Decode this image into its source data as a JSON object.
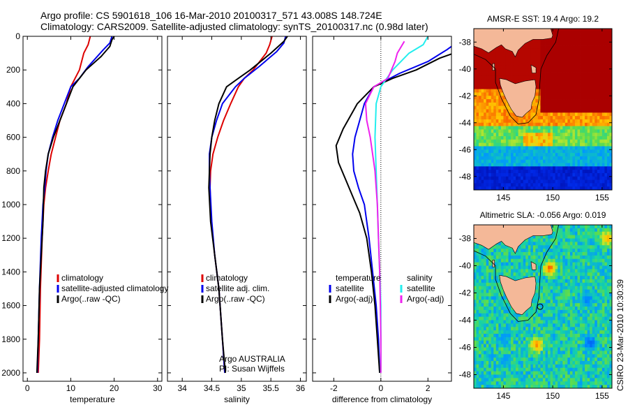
{
  "header": {
    "line1": "Argo profile: CS 5901618_106 16-Mar-2010 20100317_571 43.008S 148.724E",
    "line2": "Climatology: CARS2009. Satellite-adjusted climatology: synTS_20100317.nc (0.98d later)"
  },
  "side_label": "CSIRO 23-Mar-2010 10:30:39",
  "colors": {
    "climatology": "#dd0000",
    "satellite": "#0000ee",
    "argo": "#000000",
    "satellite_salinity": "#22eeee",
    "argo_adj_salinity": "#ee22ee",
    "land": "#f4b898",
    "coast": "#000000"
  },
  "chart_data": [
    {
      "type": "line",
      "name": "temperature-panel",
      "xlabel": "temperature",
      "xlim": [
        -1,
        31
      ],
      "ylim": [
        2050,
        0
      ],
      "xticks": [
        0,
        10,
        20,
        30
      ],
      "yticks": [
        0,
        200,
        400,
        600,
        800,
        1000,
        1200,
        1400,
        1600,
        1800,
        2000
      ],
      "legend": [
        "climatology",
        "satellite-adjusted climatology",
        "Argo(..raw -QC)"
      ],
      "series": [
        {
          "name": "climatology",
          "color_key": "climatology",
          "x": [
            14.5,
            14.0,
            13.0,
            12.0,
            11.0,
            10.0,
            9.0,
            7.5,
            6.5,
            5.5,
            4.8,
            4.2,
            3.8,
            3.4,
            3.0,
            2.8,
            2.5
          ],
          "y": [
            0,
            50,
            100,
            200,
            250,
            300,
            400,
            500,
            600,
            700,
            800,
            900,
            1000,
            1200,
            1500,
            1800,
            2000
          ]
        },
        {
          "name": "satellite-adjusted climatology",
          "color_key": "satellite",
          "x": [
            19.5,
            19.0,
            17.5,
            14.0,
            12.0,
            10.0,
            8.5,
            7.0,
            5.8,
            4.8,
            4.3,
            4.0,
            3.6,
            3.2,
            2.8,
            2.5,
            2.3
          ],
          "y": [
            0,
            40,
            80,
            180,
            250,
            300,
            400,
            500,
            600,
            700,
            800,
            900,
            1000,
            1200,
            1500,
            1800,
            2000
          ]
        },
        {
          "name": "Argo(..raw -QC)",
          "color_key": "argo",
          "x": [
            20.0,
            19.5,
            19.0,
            17.0,
            13.5,
            10.5,
            9.0,
            7.5,
            6.0,
            4.8,
            4.2,
            3.8,
            3.6,
            3.2,
            2.8,
            2.5,
            2.2
          ],
          "y": [
            0,
            20,
            60,
            120,
            200,
            300,
            400,
            500,
            600,
            700,
            800,
            900,
            1100,
            1300,
            1500,
            1800,
            2000
          ]
        }
      ],
      "annotations": []
    },
    {
      "type": "line",
      "name": "salinity-panel",
      "xlabel": "salinity",
      "xlim": [
        33.75,
        36.1
      ],
      "ylim": [
        2050,
        0
      ],
      "xticks": [
        34,
        34.5,
        35,
        35.5,
        36
      ],
      "legend": [
        "climatology",
        "satellite adj. clim.",
        "Argo(..raw -QC)"
      ],
      "series": [
        {
          "name": "climatology",
          "color_key": "climatology",
          "x": [
            35.52,
            35.48,
            35.42,
            35.2,
            35.05,
            34.95,
            34.82,
            34.7,
            34.6,
            34.52,
            34.48,
            34.47,
            34.49,
            34.55,
            34.62,
            34.68,
            34.72
          ],
          "y": [
            0,
            50,
            100,
            200,
            250,
            300,
            400,
            500,
            600,
            700,
            800,
            900,
            1100,
            1300,
            1500,
            1800,
            2000
          ]
        },
        {
          "name": "satellite adj. clim.",
          "color_key": "satellite",
          "x": [
            35.75,
            35.72,
            35.6,
            35.3,
            35.05,
            34.9,
            34.68,
            34.58,
            34.5,
            34.46,
            34.46,
            34.47,
            34.5,
            34.55,
            34.62,
            34.68,
            34.72
          ],
          "y": [
            0,
            40,
            90,
            180,
            250,
            300,
            400,
            500,
            600,
            700,
            800,
            900,
            1100,
            1300,
            1500,
            1800,
            2000
          ]
        },
        {
          "name": "Argo(..raw -QC)",
          "color_key": "argo",
          "x": [
            35.78,
            35.72,
            35.5,
            35.15,
            34.95,
            34.75,
            34.62,
            34.55,
            34.5,
            34.47,
            34.46,
            34.45,
            34.48,
            34.55,
            34.62,
            34.68,
            34.73
          ],
          "y": [
            0,
            30,
            100,
            200,
            250,
            300,
            400,
            500,
            600,
            700,
            800,
            900,
            1100,
            1300,
            1500,
            1800,
            2000
          ]
        }
      ],
      "annotations": [
        "Argo AUSTRALIA",
        "PI: Susan Wijffels"
      ]
    },
    {
      "type": "line",
      "name": "difference-panel",
      "xlabel": "difference from climatology",
      "xlim": [
        -2.9,
        3.0
      ],
      "ylim": [
        2050,
        0
      ],
      "xticks": [
        -2,
        0,
        2
      ],
      "zero_line": true,
      "legend_columns": [
        {
          "heading": "temperature",
          "items": [
            "satellite",
            "Argo(-adj)"
          ]
        },
        {
          "heading": "salinity",
          "items": [
            "satellite",
            "Argo(-adj)"
          ]
        }
      ],
      "series": [
        {
          "name": "temperature satellite",
          "color_key": "satellite",
          "x": [
            3.1,
            2.8,
            2.0,
            0.8,
            -0.3,
            -0.7,
            -0.9,
            -1.1,
            -1.2,
            -1.15,
            -0.95,
            -0.7,
            -0.5,
            -0.35,
            -0.2,
            -0.1,
            -0.05
          ],
          "y": [
            50,
            80,
            150,
            220,
            300,
            400,
            500,
            600,
            700,
            800,
            900,
            1000,
            1200,
            1400,
            1600,
            1800,
            2000
          ]
        },
        {
          "name": "temperature Argo(-adj)",
          "color_key": "argo",
          "x": [
            3.1,
            2.5,
            1.5,
            0.5,
            -0.3,
            -1.0,
            -1.6,
            -1.9,
            -1.8,
            -1.5,
            -1.2,
            -0.9,
            -0.6,
            -0.4,
            -0.25,
            -0.15,
            -0.05
          ],
          "y": [
            100,
            130,
            200,
            250,
            300,
            400,
            550,
            650,
            750,
            850,
            950,
            1050,
            1200,
            1400,
            1600,
            1800,
            2000
          ]
        },
        {
          "name": "salinity satellite",
          "color_key": "satellite_salinity",
          "x": [
            2.0,
            1.8,
            1.2,
            0.5,
            0.0,
            -0.2,
            -0.25,
            -0.2,
            -0.15,
            -0.1,
            -0.05,
            -0.02,
            0.0,
            0.0,
            0.0,
            0.0,
            0.0
          ],
          "y": [
            0,
            50,
            100,
            200,
            300,
            400,
            600,
            800,
            1000,
            1200,
            1400,
            1500,
            1600,
            1700,
            1800,
            1900,
            2000
          ]
        },
        {
          "name": "salinity Argo(-adj)",
          "color_key": "argo_adj_salinity",
          "x": [
            1.0,
            0.7,
            0.6,
            0.3,
            -0.3,
            -0.65,
            -0.6,
            -0.45,
            -0.35,
            -0.25,
            -0.2,
            -0.15,
            -0.1,
            -0.05,
            -0.02,
            0.0,
            0.0
          ],
          "y": [
            30,
            100,
            150,
            250,
            300,
            400,
            500,
            600,
            700,
            800,
            900,
            1000,
            1200,
            1400,
            1600,
            1800,
            2000
          ]
        }
      ],
      "annotations": []
    }
  ],
  "maps": [
    {
      "name": "sst-map",
      "title": "AMSR-E SST: 19.4 Argo: 19.2",
      "xticks": [
        145,
        150,
        155
      ],
      "yticks": [
        -38,
        -40,
        -42,
        -44,
        -46,
        -48
      ],
      "xlim": [
        142,
        156
      ],
      "ylim": [
        -37,
        -49
      ]
    },
    {
      "name": "sla-map",
      "title": "Altimetric SLA: -0.056 Argo: 0.019",
      "xticks": [
        145,
        150,
        155
      ],
      "yticks": [
        -38,
        -40,
        -42,
        -44,
        -46,
        -48
      ],
      "xlim": [
        142,
        156
      ],
      "ylim": [
        -37,
        -49
      ]
    }
  ]
}
